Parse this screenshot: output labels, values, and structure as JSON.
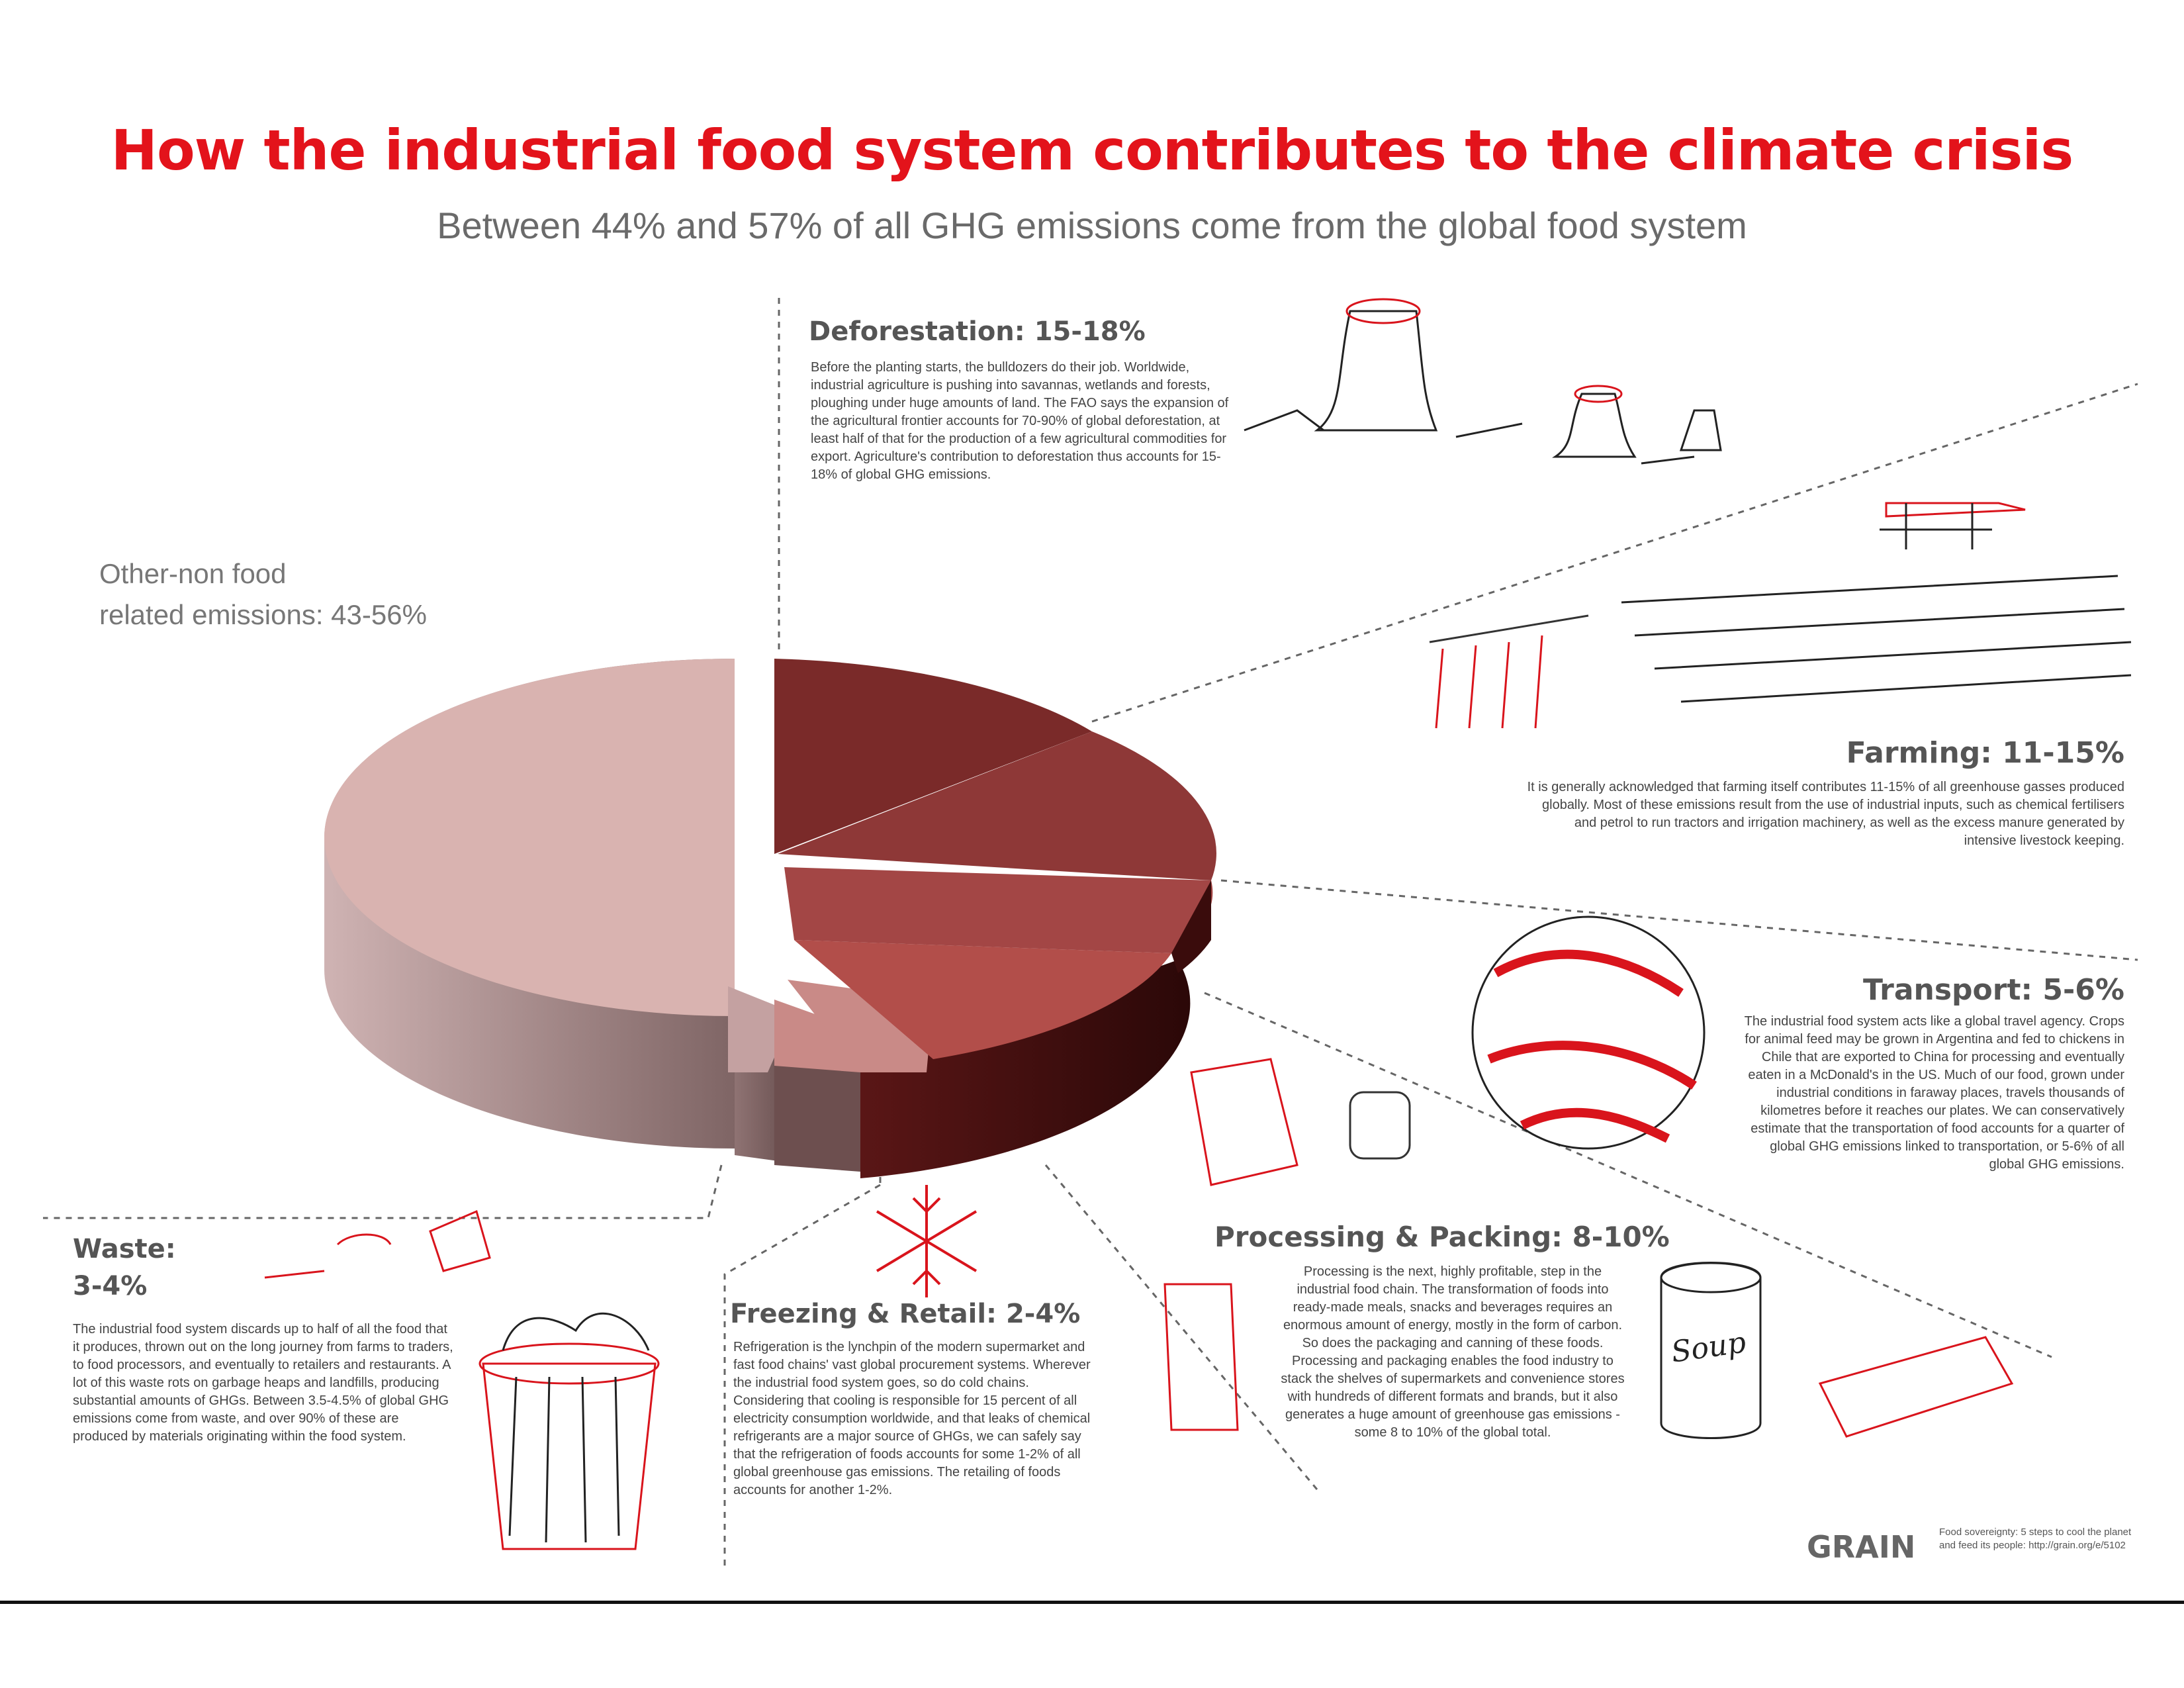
{
  "title": "How the industrial food system contributes to the climate crisis",
  "subtitle": "Between 44% and 57% of all GHG emissions come from the global food system",
  "other_label": "Other-non food\nrelated emissions: 43-56%",
  "sections": {
    "deforestation": {
      "heading": "Deforestation: 15-18%",
      "body": "Before the planting starts, the bulldozers do their job. Worldwide, industrial agriculture is pushing into savannas, wetlands and forests, ploughing under huge amounts of land. The FAO says the expansion of the agricultural frontier accounts for 70-90% of global deforestation, at least half of that for the production of a few agricultural commodities for export. Agriculture's contribution to deforestation thus accounts for 15-18% of global GHG emissions."
    },
    "farming": {
      "heading": "Farming: 11-15%",
      "body": "It is generally acknowledged that farming itself contributes 11-15% of all greenhouse gasses produced globally. Most of these emissions result from the use of industrial inputs, such as chemical fertilisers and petrol to run tractors and irrigation machinery, as well as the excess manure generated by intensive livestock keeping."
    },
    "transport": {
      "heading": "Transport: 5-6%",
      "body": "The industrial food system acts like a global travel agency. Crops for animal feed may be grown in Argentina and fed to chickens in Chile that are exported to China for processing and eventually eaten in a McDonald's in the US. Much of our food, grown under industrial conditions in faraway places, travels thousands of kilometres before it reaches our plates. We can conservatively estimate that the transportation of food accounts for a quarter of global GHG emissions linked to transportation, or 5-6% of all global GHG emissions."
    },
    "processing": {
      "heading": "Processing & Packing: 8-10%",
      "body": "Processing is the next, highly profitable, step in the industrial food chain. The transformation of foods into ready-made meals, snacks and beverages requires an enormous amount of energy, mostly in the form of carbon. So does the packaging and canning of these foods. Processing and packaging enables the food industry to stack the shelves of supermarkets and convenience stores with hundreds of different formats and brands, but it also generates a huge amount of greenhouse gas emissions - some 8 to 10% of the global total."
    },
    "freezing": {
      "heading": "Freezing & Retail: 2-4%",
      "body": "Refrigeration is the lynchpin of the modern supermarket and fast food chains' vast global procurement systems. Wherever the industrial food system goes, so do cold chains. Considering that cooling is responsible for 15 percent of all electricity consumption worldwide, and that leaks of chemical refrigerants are a major source of GHGs, we can safely say that the refrigeration of foods accounts for some 1-2% of all global greenhouse gas emissions. The retailing of foods accounts for another 1-2%."
    },
    "waste": {
      "heading_line1": "Waste:",
      "heading_line2": "3-4%",
      "body": "The industrial food system discards up to half of all the food that it produces, thrown out on the long journey from farms to traders, to food processors, and eventually to retailers and restaurants. A lot of this waste rots on garbage heaps and landfills, producing substantial amounts of GHGs. Between 3.5-4.5% of global GHG emissions come from waste, and over 90% of these are produced by materials originating within the food system."
    }
  },
  "illustration_labels": {
    "soup_can": "Soup"
  },
  "credits": {
    "logo": "GRAIN",
    "note": "Food sovereignty: 5 steps to cool the planet and feed its people: http://grain.org/e/5102"
  },
  "colors": {
    "title": "#e3131b",
    "sketch_red": "#d9141c",
    "other_slice": "#d9b3b0",
    "deforestation": "#7a2a29",
    "farming": "#8e3837",
    "transport": "#a34645",
    "processing": "#b24e4a",
    "freezing": "#c98a87",
    "waste": "#b98988"
  }
}
